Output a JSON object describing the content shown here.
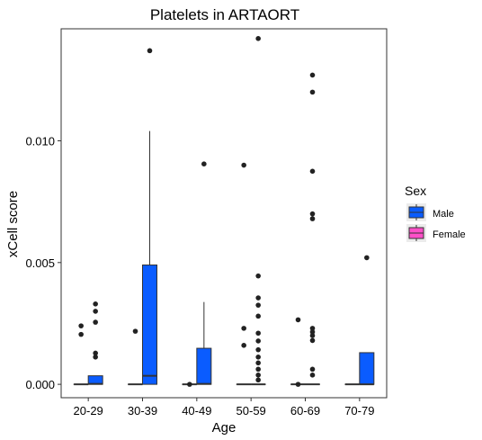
{
  "chart_data": {
    "type": "boxplot",
    "title": "Platelets in ARTAORT",
    "xlabel": "Age",
    "ylabel": "xCell score",
    "categories": [
      "20-29",
      "30-39",
      "40-49",
      "50-59",
      "60-69",
      "70-79"
    ],
    "ylim": [
      -0.00055,
      0.0146
    ],
    "yticks": [
      0.0,
      0.005,
      0.01
    ],
    "ytick_labels": [
      "0.000",
      "0.005",
      "0.010"
    ],
    "grid": false,
    "legend_position": "right",
    "legend": {
      "title": "Sex",
      "entries": [
        {
          "name": "Male",
          "color": "#0a5cff"
        },
        {
          "name": "Female",
          "color": "#ff4fc8"
        }
      ]
    },
    "groups": [
      {
        "category": "20-29",
        "sex": "Female",
        "box": {
          "min": 0,
          "q1": 0,
          "median": 0,
          "q3": 0,
          "max": 0
        },
        "outliers": [
          0.0024,
          0.00205
        ]
      },
      {
        "category": "20-29",
        "sex": "Male",
        "box": {
          "min": 0,
          "q1": 0,
          "median": 2e-05,
          "q3": 0.00035,
          "max": 0.00035
        },
        "outliers": [
          0.0033,
          0.003,
          0.00255,
          0.00128,
          0.00112
        ]
      },
      {
        "category": "30-39",
        "sex": "Female",
        "box": {
          "min": 0,
          "q1": 0,
          "median": 0,
          "q3": 0,
          "max": 0
        },
        "outliers": [
          0.00218
        ]
      },
      {
        "category": "30-39",
        "sex": "Male",
        "box": {
          "min": 0,
          "q1": 0,
          "median": 0.00035,
          "q3": 0.0049,
          "max": 0.0104
        },
        "outliers": [
          0.0137
        ]
      },
      {
        "category": "40-49",
        "sex": "Female",
        "box": {
          "min": 0,
          "q1": 0,
          "median": 0,
          "q3": 0,
          "max": 0
        },
        "outliers": [
          0.0
        ]
      },
      {
        "category": "40-49",
        "sex": "Male",
        "box": {
          "min": 0,
          "q1": 0,
          "median": 2e-05,
          "q3": 0.00148,
          "max": 0.00338
        },
        "outliers": [
          0.00905
        ]
      },
      {
        "category": "50-59",
        "sex": "Female",
        "box": {
          "min": 0,
          "q1": 0,
          "median": 0,
          "q3": 0,
          "max": 0
        },
        "outliers": [
          0.009,
          0.0023,
          0.0016
        ]
      },
      {
        "category": "50-59",
        "sex": "Male",
        "box": {
          "min": 0,
          "q1": 0,
          "median": 0,
          "q3": 0,
          "max": 0
        },
        "outliers": [
          0.0142,
          0.00445,
          0.00355,
          0.00325,
          0.0028,
          0.0021,
          0.00178,
          0.00142,
          0.00112,
          0.00088,
          0.00062,
          0.00038,
          0.00018
        ]
      },
      {
        "category": "60-69",
        "sex": "Female",
        "box": {
          "min": 0,
          "q1": 0,
          "median": 0,
          "q3": 0,
          "max": 0
        },
        "outliers": [
          0.00265,
          0.0
        ]
      },
      {
        "category": "60-69",
        "sex": "Male",
        "box": {
          "min": 0,
          "q1": 0,
          "median": 0,
          "q3": 0,
          "max": 0
        },
        "outliers": [
          0.0127,
          0.012,
          0.00875,
          0.007,
          0.0068,
          0.0023,
          0.00215,
          0.002,
          0.0018,
          0.00062,
          0.00038
        ]
      },
      {
        "category": "70-79",
        "sex": "Female",
        "box": {
          "min": 0,
          "q1": 0,
          "median": 0,
          "q3": 0,
          "max": 0
        },
        "outliers": []
      },
      {
        "category": "70-79",
        "sex": "Male",
        "box": {
          "min": 0,
          "q1": 0,
          "median": 0,
          "q3": 0.0013,
          "max": 0.0013
        },
        "outliers": [
          0.0052
        ]
      }
    ]
  }
}
